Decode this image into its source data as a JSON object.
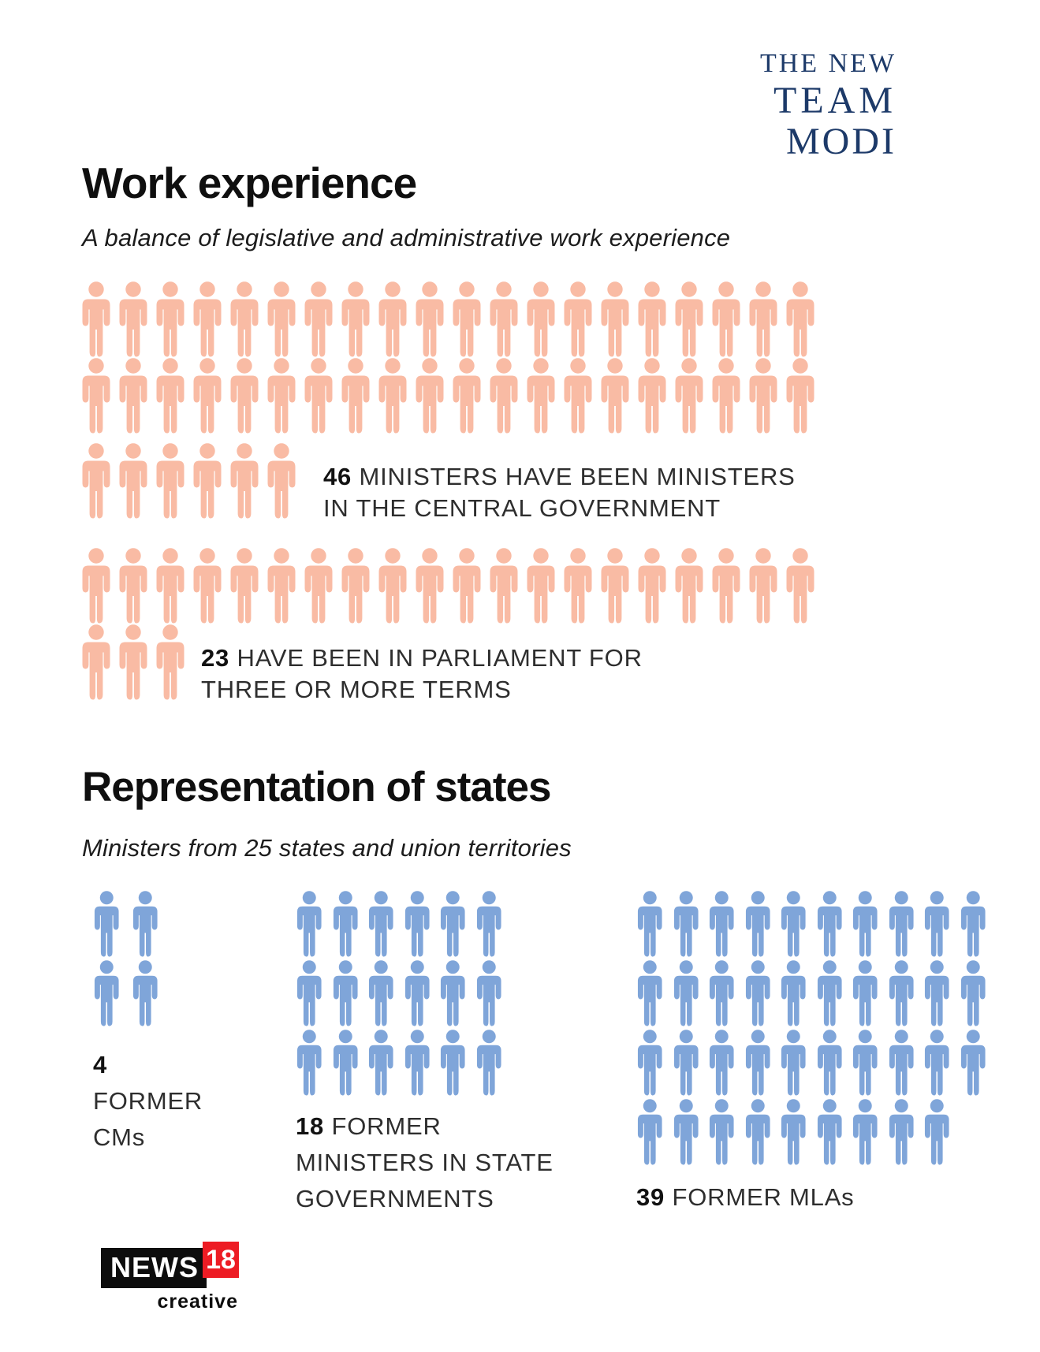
{
  "brand": {
    "lines": [
      "THE NEW",
      "TEAM",
      "MODI"
    ]
  },
  "work_section": {
    "title": "Work experience",
    "subtitle": "A balance of legislative and administrative work experience"
  },
  "states_section": {
    "title": "Representation of states",
    "subtitle": "Ministers from 25 states and union territories"
  },
  "chart_data": [
    {
      "type": "pictogram",
      "section": "Work experience",
      "unit": "one icon = one minister",
      "icon": "person-icon",
      "icon_color": "#f9bba4",
      "groups": [
        {
          "value": 46,
          "rows": [
            20,
            20,
            6
          ],
          "label_lines": [
            "MINISTERS HAVE BEEN MINISTERS",
            "IN THE CENTRAL GOVERNMENT"
          ]
        },
        {
          "value": 23,
          "rows": [
            20,
            3
          ],
          "label_lines": [
            "HAVE BEEN IN PARLIAMENT FOR",
            "THREE OR MORE TERMS"
          ]
        }
      ]
    },
    {
      "type": "pictogram",
      "section": "Representation of states",
      "unit": "one icon = one minister",
      "icon": "person-icon",
      "icon_color": "#7fa5d9",
      "groups": [
        {
          "value": 4,
          "rows": [
            2,
            2
          ],
          "label_lines": [
            "",
            "FORMER",
            "CMs"
          ]
        },
        {
          "value": 18,
          "rows": [
            6,
            6,
            6
          ],
          "label_lines": [
            "FORMER",
            "MINISTERS IN STATE",
            "GOVERNMENTS"
          ]
        },
        {
          "value": 39,
          "rows": [
            10,
            10,
            10,
            9
          ],
          "label_lines": [
            "FORMER MLAs"
          ]
        }
      ]
    }
  ],
  "footer": {
    "logo_text": "NEWS",
    "logo_number": "18",
    "logo_tagline": "creative"
  },
  "colors": {
    "salmon": "#f9bba4",
    "blue": "#7fa5d9",
    "navy": "#1d3a69",
    "red": "#ed1c24",
    "heading": "#0f0f0f"
  }
}
